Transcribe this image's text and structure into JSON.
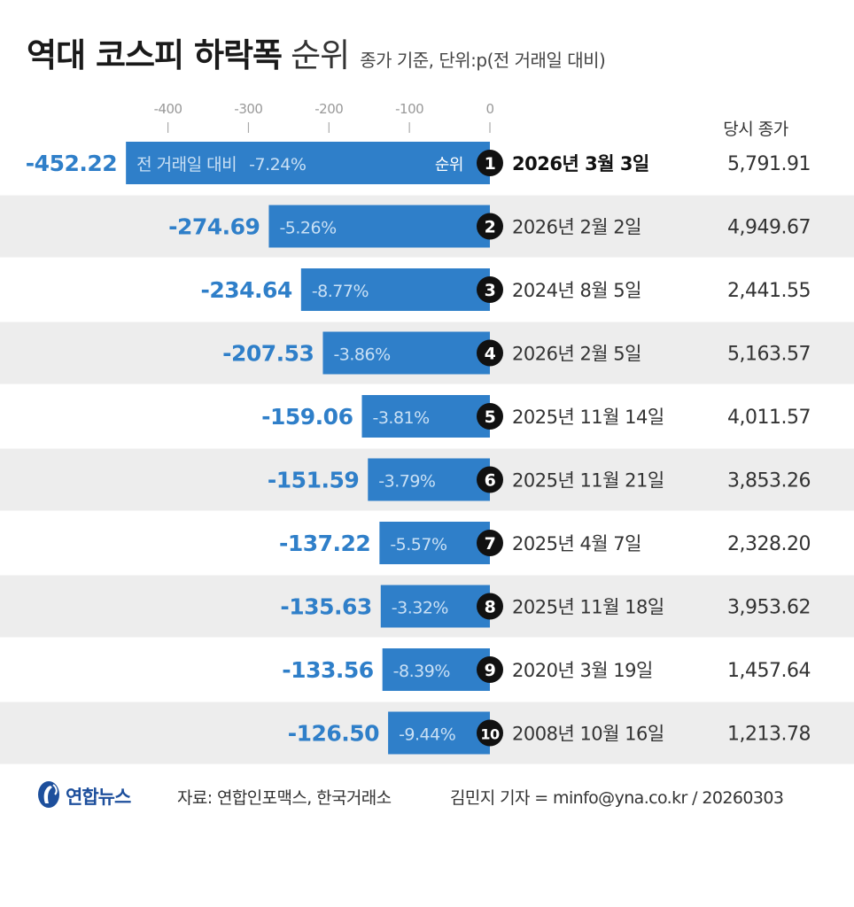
{
  "title": "역대 코스피 하락폭",
  "title_light": "순위",
  "subtitle": "종가 기준, 단위:p(전 거래일 대비)",
  "close_header": "당시 종가",
  "pct_prefix_first": "전 거래일 대비",
  "rank_label": "순위",
  "colors": {
    "bar": "#2f7fc9",
    "value_text": "#2f7fc9",
    "band": "#ededed",
    "badge": "#111111",
    "axis": "#aaaaaa"
  },
  "chart_data": {
    "type": "bar",
    "orientation": "horizontal",
    "xlim": [
      -452.22,
      0
    ],
    "xticks": [
      -400,
      -300,
      -200,
      -100,
      0
    ],
    "xtick_labels": [
      "-400",
      "-300",
      "-200",
      "-100",
      "0"
    ],
    "rows": [
      {
        "rank": "1",
        "value": -452.22,
        "value_label": "-452.22",
        "pct": "-7.24%",
        "date": "2026년 3월 3일",
        "close": "5,791.91"
      },
      {
        "rank": "2",
        "value": -274.69,
        "value_label": "-274.69",
        "pct": "-5.26%",
        "date": "2026년 2월 2일",
        "close": "4,949.67"
      },
      {
        "rank": "3",
        "value": -234.64,
        "value_label": "-234.64",
        "pct": "-8.77%",
        "date": "2024년 8월 5일",
        "close": "2,441.55"
      },
      {
        "rank": "4",
        "value": -207.53,
        "value_label": "-207.53",
        "pct": "-3.86%",
        "date": "2026년 2월 5일",
        "close": "5,163.57"
      },
      {
        "rank": "5",
        "value": -159.06,
        "value_label": "-159.06",
        "pct": "-3.81%",
        "date": "2025년 11월 14일",
        "close": "4,011.57"
      },
      {
        "rank": "6",
        "value": -151.59,
        "value_label": "-151.59",
        "pct": "-3.79%",
        "date": "2025년 11월 21일",
        "close": "3,853.26"
      },
      {
        "rank": "7",
        "value": -137.22,
        "value_label": "-137.22",
        "pct": "-5.57%",
        "date": "2025년 4월 7일",
        "close": "2,328.20"
      },
      {
        "rank": "8",
        "value": -135.63,
        "value_label": "-135.63",
        "pct": "-3.32%",
        "date": "2025년 11월 18일",
        "close": "3,953.62"
      },
      {
        "rank": "9",
        "value": -133.56,
        "value_label": "-133.56",
        "pct": "-8.39%",
        "date": "2020년 3월 19일",
        "close": "1,457.64"
      },
      {
        "rank": "10",
        "value": -126.5,
        "value_label": "-126.50",
        "pct": "-9.44%",
        "date": "2008년 10월 16일",
        "close": "1,213.78"
      }
    ]
  },
  "footer": {
    "logo_text": "연합뉴스",
    "source": "자료: 연합인포맥스, 한국거래소",
    "credit": "김민지 기자 = minfo@yna.co.kr / 20260303"
  }
}
